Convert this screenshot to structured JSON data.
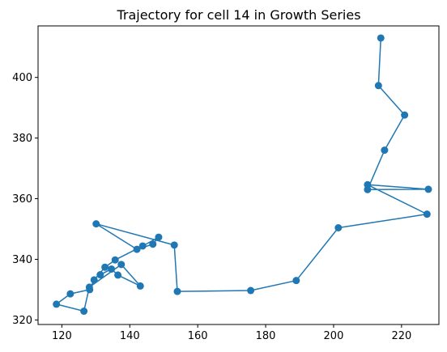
{
  "chart_data": {
    "type": "line",
    "title": "Trajectory for cell 14 in Growth Series",
    "xlabel": "",
    "ylabel": "",
    "xlim": [
      113,
      231
    ],
    "ylim": [
      318.5,
      417
    ],
    "xticks": [
      120,
      140,
      160,
      180,
      200,
      220
    ],
    "yticks": [
      320,
      340,
      360,
      380,
      400
    ],
    "grid": false,
    "legend": "none",
    "colors": {
      "series": "#1f77b4",
      "axes": "#000000",
      "background": "#ffffff"
    },
    "series": [
      {
        "marker": "circle",
        "x": [
          213.9,
          213.2,
          220.9,
          215.0,
          210.0,
          227.9,
          210.0,
          227.5,
          201.4,
          189.0,
          175.6,
          154.0,
          153.1,
          130.1,
          142.1,
          146.8,
          148.5,
          143.8,
          135.7,
          132.7,
          129.5,
          128.2,
          122.5,
          118.4,
          126.5,
          128.1,
          137.5,
          143.1,
          136.5,
          134.6,
          131.3
        ],
        "y": [
          413.0,
          397.3,
          387.6,
          376.0,
          363.0,
          363.1,
          364.6,
          354.9,
          350.4,
          333.0,
          329.7,
          329.4,
          344.7,
          351.7,
          343.3,
          345.0,
          347.3,
          344.4,
          339.8,
          337.4,
          333.2,
          330.0,
          328.6,
          325.2,
          322.9,
          330.8,
          338.3,
          331.2,
          334.8,
          336.8,
          334.9
        ]
      }
    ]
  }
}
